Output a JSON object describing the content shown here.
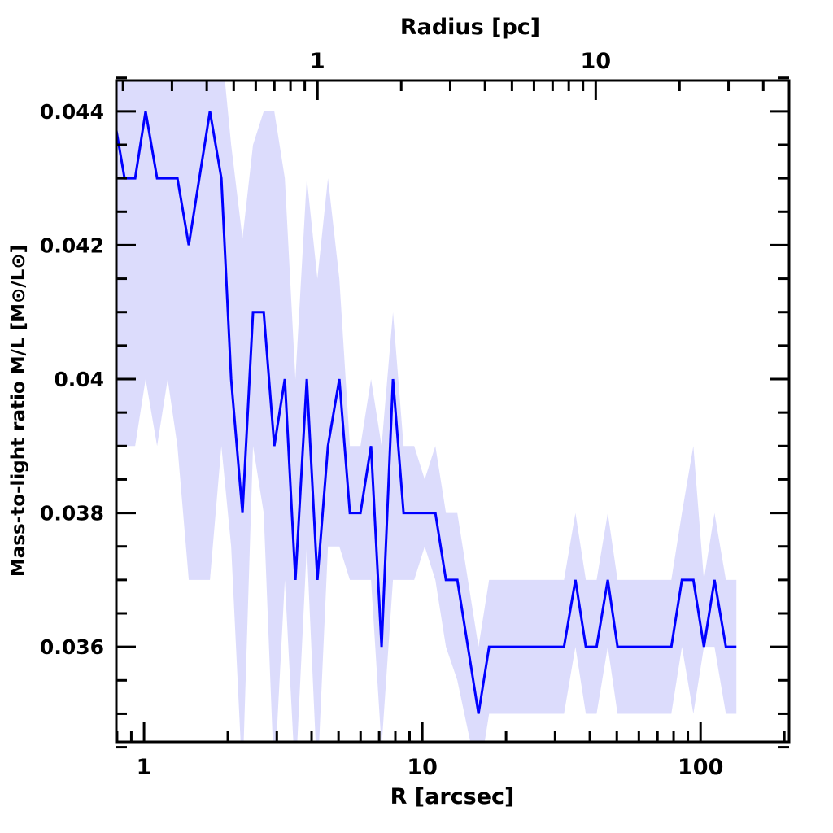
{
  "chart_data": {
    "type": "line",
    "title": "",
    "xlabel": "R [arcsec]",
    "ylabel": "Mass-to-light ratio M/L [M⊙/L⊙]",
    "top_xlabel": "Radius [pc]",
    "xscale": "log",
    "xlim": [
      0.795,
      208
    ],
    "ylim": [
      0.03458,
      0.04446
    ],
    "arcsec_per_pc": 4.2,
    "x_tick_labels": [
      "1",
      "10",
      "100"
    ],
    "x_ticks": [
      1,
      10,
      100
    ],
    "top_tick_labels": [
      "1",
      "10"
    ],
    "top_ticks": [
      1,
      10
    ],
    "y_tick_labels": [
      "0.036",
      "0.038",
      "0.04",
      "0.042",
      "0.044"
    ],
    "y_ticks": [
      0.036,
      0.038,
      0.04,
      0.042,
      0.044
    ],
    "line_color": "#0000ff",
    "band_color": "#dcdcfc",
    "series": [
      {
        "name": "M/L",
        "x": [
          0.774,
          0.851,
          0.929,
          1.013,
          1.114,
          1.216,
          1.318,
          1.448,
          1.58,
          1.725,
          1.896,
          2.056,
          2.258,
          2.464,
          2.692,
          2.938,
          3.206,
          3.499,
          3.845,
          4.197,
          4.581,
          5.033,
          5.492,
          5.994,
          6.542,
          7.139,
          7.845,
          8.564,
          9.35,
          10.2,
          11.14,
          12.16,
          13.36,
          15.92,
          17.38,
          32.3,
          35.5,
          38.7,
          42.3,
          46.4,
          50.3,
          78.5,
          85.7,
          94.2,
          102.8,
          112.2,
          123.3,
          134.5
        ],
        "y": [
          0.044,
          0.043,
          0.043,
          0.044,
          0.043,
          0.043,
          0.043,
          0.042,
          0.043,
          0.044,
          0.043,
          0.04,
          0.038,
          0.041,
          0.041,
          0.039,
          0.04,
          0.037,
          0.04,
          0.037,
          0.039,
          0.04,
          0.038,
          0.038,
          0.039,
          0.036,
          0.04,
          0.038,
          0.038,
          0.038,
          0.038,
          0.037,
          0.037,
          0.035,
          0.036,
          0.036,
          0.037,
          0.036,
          0.036,
          0.037,
          0.036,
          0.036,
          0.037,
          0.037,
          0.036,
          0.037,
          0.036,
          0.036
        ],
        "lo": [
          0.039,
          0.039,
          0.039,
          0.04,
          0.039,
          0.04,
          0.039,
          0.037,
          0.037,
          0.037,
          0.039,
          0.0375,
          0.034,
          0.039,
          0.038,
          0.034,
          0.037,
          0.034,
          0.0375,
          0.034,
          0.0375,
          0.0375,
          0.037,
          0.037,
          0.037,
          0.0345,
          0.037,
          0.037,
          0.037,
          0.0375,
          0.037,
          0.036,
          0.0355,
          0.034,
          0.035,
          0.035,
          0.036,
          0.035,
          0.035,
          0.036,
          0.035,
          0.035,
          0.036,
          0.035,
          0.036,
          0.036,
          0.035,
          0.035
        ],
        "hi": [
          0.045,
          0.045,
          0.045,
          0.045,
          0.045,
          0.045,
          0.045,
          0.045,
          0.045,
          0.045,
          0.045,
          0.0435,
          0.0421,
          0.0435,
          0.044,
          0.044,
          0.043,
          0.04,
          0.043,
          0.0415,
          0.043,
          0.0415,
          0.039,
          0.039,
          0.04,
          0.039,
          0.041,
          0.039,
          0.039,
          0.0385,
          0.039,
          0.038,
          0.038,
          0.036,
          0.037,
          0.037,
          0.038,
          0.037,
          0.037,
          0.038,
          0.037,
          0.037,
          0.038,
          0.039,
          0.037,
          0.038,
          0.037,
          0.037
        ]
      }
    ]
  }
}
